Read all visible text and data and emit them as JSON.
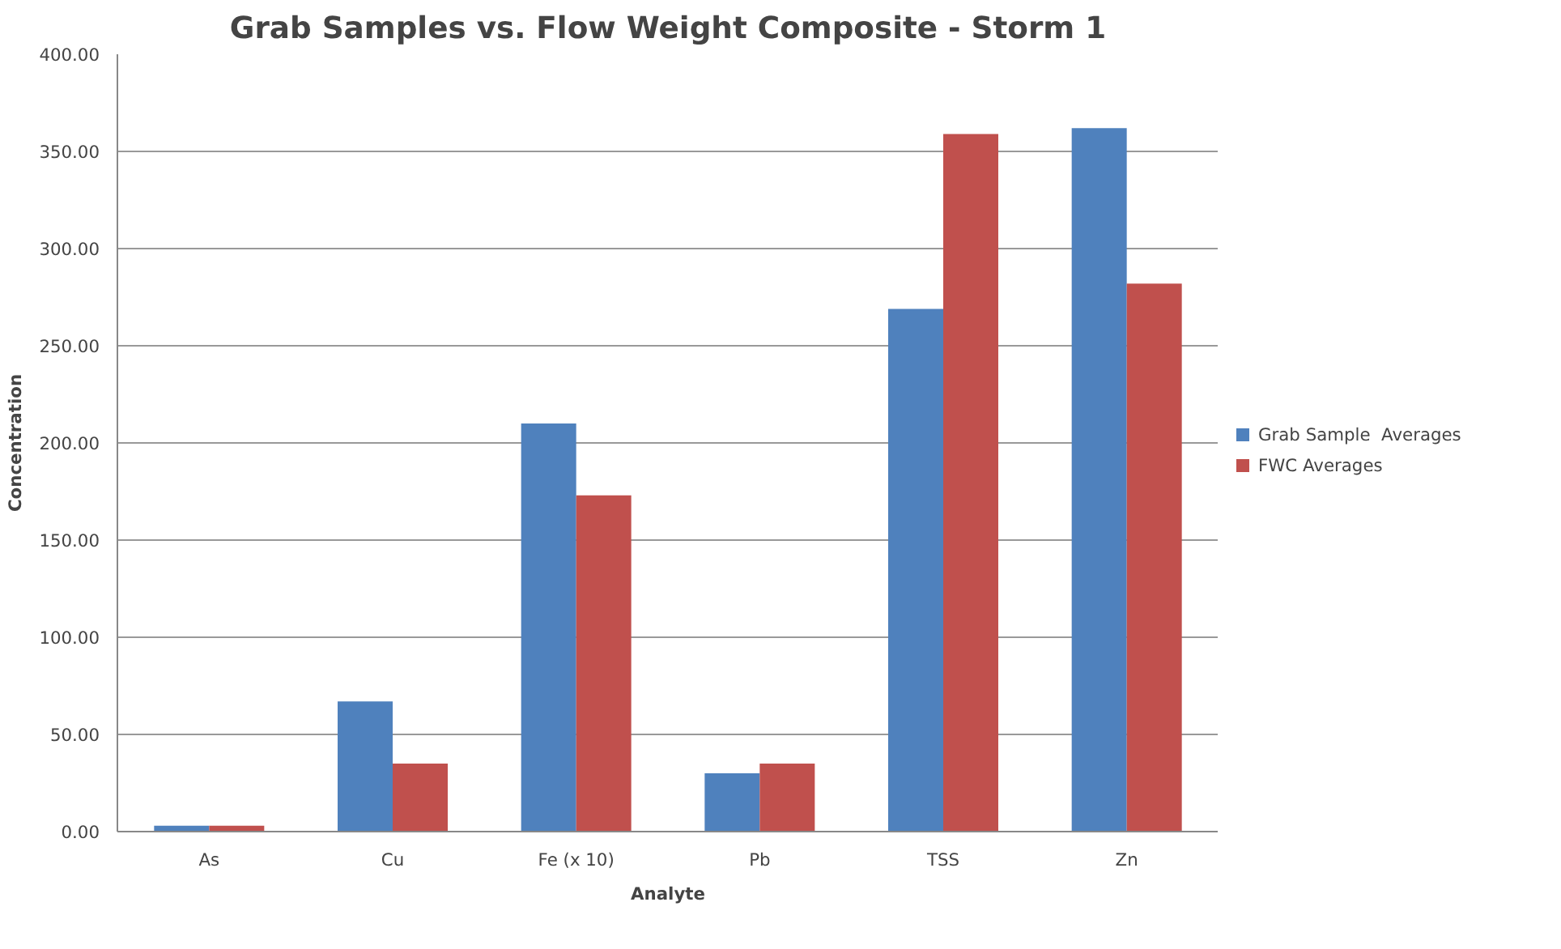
{
  "chart_data": {
    "type": "bar",
    "title": "Grab Samples vs. Flow Weight Composite - Storm 1",
    "xlabel": "Analyte",
    "ylabel": "Concentration",
    "categories": [
      "As",
      "Cu",
      "Fe (x 10)",
      "Pb",
      "TSS",
      "Zn"
    ],
    "series": [
      {
        "name": "Grab Sample  Averages",
        "color": "#4f81bd",
        "values": [
          3,
          67,
          210,
          30,
          269,
          362
        ]
      },
      {
        "name": "FWC Averages",
        "color": "#c0504d",
        "values": [
          3,
          35,
          173,
          35,
          359,
          282
        ]
      }
    ],
    "ylim": [
      0,
      400
    ],
    "yticks": [
      {
        "value": 0,
        "label": "0.00"
      },
      {
        "value": 50,
        "label": "50.00"
      },
      {
        "value": 100,
        "label": "100.00"
      },
      {
        "value": 150,
        "label": "150.00"
      },
      {
        "value": 200,
        "label": "200.00"
      },
      {
        "value": 250,
        "label": "250.00"
      },
      {
        "value": 300,
        "label": "300.00"
      },
      {
        "value": 350,
        "label": "350.00"
      },
      {
        "value": 400,
        "label": "400.00"
      }
    ],
    "grid": "y",
    "legend": "right"
  }
}
